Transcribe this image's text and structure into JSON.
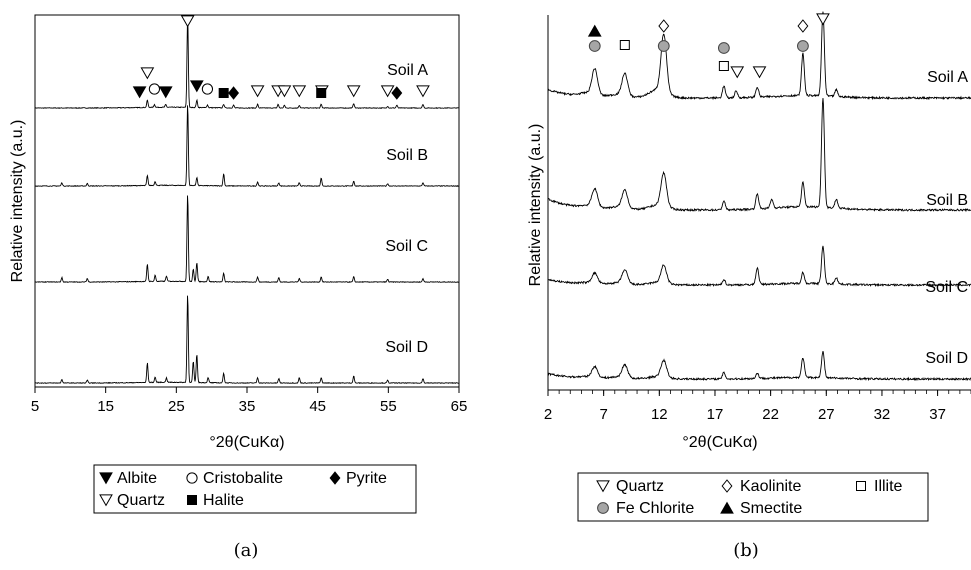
{
  "charts": [
    {
      "id": "a",
      "caption": "(a)",
      "xlabel": "°2θ(CuKα)",
      "ylabel": "Relative intensity (a.u.)",
      "x_ticks": [
        "5",
        "15",
        "25",
        "35",
        "45",
        "55",
        "65"
      ],
      "samples": [
        "Soil A",
        "Soil B",
        "Soil C",
        "Soil D"
      ],
      "legend": [
        {
          "symbol": "tri-down-filled",
          "label": "Albite"
        },
        {
          "symbol": "circle-open",
          "label": "Cristobalite"
        },
        {
          "symbol": "diamond-filled",
          "label": "Pyrite"
        },
        {
          "symbol": "tri-down-open",
          "label": "Quartz"
        },
        {
          "symbol": "square-filled",
          "label": "Halite"
        }
      ]
    },
    {
      "id": "b",
      "caption": "(b)",
      "xlabel": "°2θ(CuKα)",
      "ylabel": "Relative intensity (a.u.)",
      "x_ticks": [
        "2",
        "7",
        "12",
        "17",
        "22",
        "27",
        "32",
        "37"
      ],
      "samples": [
        "Soil A",
        "Soil B",
        "Soil C",
        "Soil D"
      ],
      "legend": [
        {
          "symbol": "tri-down-open",
          "label": "Quartz"
        },
        {
          "symbol": "diamond-open",
          "label": "Kaolinite"
        },
        {
          "symbol": "square-open",
          "label": "Illite"
        },
        {
          "symbol": "circle-gray",
          "label": "Fe Chlorite"
        },
        {
          "symbol": "tri-up-filled",
          "label": "Smectite"
        }
      ]
    }
  ],
  "chart_data": [
    {
      "type": "line",
      "panel": "a",
      "xlabel": "°2θ(CuKα)",
      "ylabel": "Relative intensity (a.u.)",
      "xlim": [
        5,
        65
      ],
      "x_ticks": [
        5,
        15,
        25,
        35,
        45,
        55,
        65
      ],
      "series": [
        {
          "name": "Soil A",
          "peaks": [
            [
              20.9,
              8
            ],
            [
              21.9,
              3
            ],
            [
              23.5,
              3
            ],
            [
              26.6,
              100
            ],
            [
              27.9,
              8
            ],
            [
              29.4,
              3
            ],
            [
              31.7,
              4
            ],
            [
              33.1,
              3
            ],
            [
              36.5,
              4
            ],
            [
              39.4,
              4
            ],
            [
              40.3,
              3
            ],
            [
              42.4,
              3
            ],
            [
              45.5,
              4
            ],
            [
              50.1,
              5
            ],
            [
              54.9,
              2
            ],
            [
              56.2,
              3
            ],
            [
              59.9,
              4
            ]
          ]
        },
        {
          "name": "Soil B",
          "peaks": [
            [
              8.8,
              4
            ],
            [
              12.4,
              3
            ],
            [
              20.9,
              12
            ],
            [
              22.0,
              5
            ],
            [
              26.6,
              100
            ],
            [
              27.9,
              10
            ],
            [
              31.7,
              15
            ],
            [
              36.5,
              5
            ],
            [
              39.5,
              4
            ],
            [
              42.4,
              4
            ],
            [
              45.5,
              10
            ],
            [
              50.1,
              6
            ],
            [
              54.9,
              3
            ],
            [
              59.9,
              4
            ]
          ]
        },
        {
          "name": "Soil C",
          "peaks": [
            [
              8.8,
              5
            ],
            [
              12.4,
              4
            ],
            [
              20.9,
              20
            ],
            [
              22.0,
              7
            ],
            [
              23.6,
              6
            ],
            [
              26.6,
              100
            ],
            [
              27.4,
              14
            ],
            [
              27.9,
              22
            ],
            [
              29.5,
              6
            ],
            [
              31.7,
              10
            ],
            [
              36.5,
              6
            ],
            [
              39.5,
              5
            ],
            [
              42.4,
              4
            ],
            [
              45.5,
              6
            ],
            [
              50.1,
              6
            ],
            [
              54.9,
              3
            ],
            [
              59.9,
              4
            ]
          ]
        },
        {
          "name": "Soil D",
          "peaks": [
            [
              8.8,
              4
            ],
            [
              12.4,
              3
            ],
            [
              20.9,
              22
            ],
            [
              22.0,
              6
            ],
            [
              23.6,
              5
            ],
            [
              26.6,
              100
            ],
            [
              27.4,
              24
            ],
            [
              27.9,
              32
            ],
            [
              29.5,
              6
            ],
            [
              31.7,
              11
            ],
            [
              36.5,
              6
            ],
            [
              39.5,
              5
            ],
            [
              42.4,
              6
            ],
            [
              45.5,
              6
            ],
            [
              50.1,
              8
            ],
            [
              54.9,
              3
            ],
            [
              59.9,
              5
            ]
          ]
        }
      ],
      "markers_soil_a": [
        {
          "phase": "Albite",
          "x": [
            19.8,
            23.5,
            27.9
          ]
        },
        {
          "phase": "Cristobalite",
          "x": [
            21.9,
            29.4
          ]
        },
        {
          "phase": "Quartz",
          "x": [
            20.9,
            26.6,
            36.5,
            39.4,
            40.3,
            42.4,
            45.6,
            50.1,
            54.9,
            59.9
          ]
        },
        {
          "phase": "Halite",
          "x": [
            31.7,
            45.5
          ]
        },
        {
          "phase": "Pyrite",
          "x": [
            33.1,
            56.2
          ]
        }
      ]
    },
    {
      "type": "line",
      "panel": "b",
      "xlabel": "°2θ(CuKα)",
      "ylabel": "Relative intensity (a.u.)",
      "xlim": [
        2,
        40
      ],
      "x_ticks": [
        2,
        7,
        12,
        17,
        22,
        27,
        32,
        37
      ],
      "series": [
        {
          "name": "Soil A",
          "peaks": [
            [
              6.2,
              30
            ],
            [
              8.9,
              26
            ],
            [
              12.4,
              68
            ],
            [
              17.8,
              14
            ],
            [
              18.9,
              8
            ],
            [
              20.8,
              12
            ],
            [
              24.9,
              50
            ],
            [
              26.7,
              100
            ],
            [
              27.9,
              8
            ]
          ]
        },
        {
          "name": "Soil B",
          "peaks": [
            [
              6.2,
              16
            ],
            [
              8.9,
              16
            ],
            [
              12.4,
              30
            ],
            [
              17.8,
              8
            ],
            [
              20.8,
              14
            ],
            [
              22.1,
              8
            ],
            [
              24.9,
              22
            ],
            [
              26.7,
              100
            ],
            [
              27.9,
              8
            ]
          ]
        },
        {
          "name": "Soil C",
          "peaks": [
            [
              6.2,
              18
            ],
            [
              8.9,
              24
            ],
            [
              12.4,
              32
            ],
            [
              17.8,
              10
            ],
            [
              20.8,
              30
            ],
            [
              24.9,
              20
            ],
            [
              26.7,
              68
            ],
            [
              27.9,
              12
            ]
          ]
        },
        {
          "name": "Soil D",
          "peaks": [
            [
              6.2,
              20
            ],
            [
              8.9,
              24
            ],
            [
              12.4,
              32
            ],
            [
              17.8,
              12
            ],
            [
              20.8,
              10
            ],
            [
              24.9,
              38
            ],
            [
              26.7,
              50
            ]
          ]
        }
      ],
      "markers_soil_a": [
        {
          "phase": "Smectite",
          "x": [
            6.2
          ]
        },
        {
          "phase": "Fe Chlorite",
          "x": [
            6.2,
            12.4,
            17.8,
            24.9
          ]
        },
        {
          "phase": "Illite",
          "x": [
            8.9,
            17.8
          ]
        },
        {
          "phase": "Kaolinite",
          "x": [
            12.4,
            24.9
          ]
        },
        {
          "phase": "Quartz",
          "x": [
            19.0,
            21.0,
            26.7
          ]
        }
      ]
    }
  ]
}
